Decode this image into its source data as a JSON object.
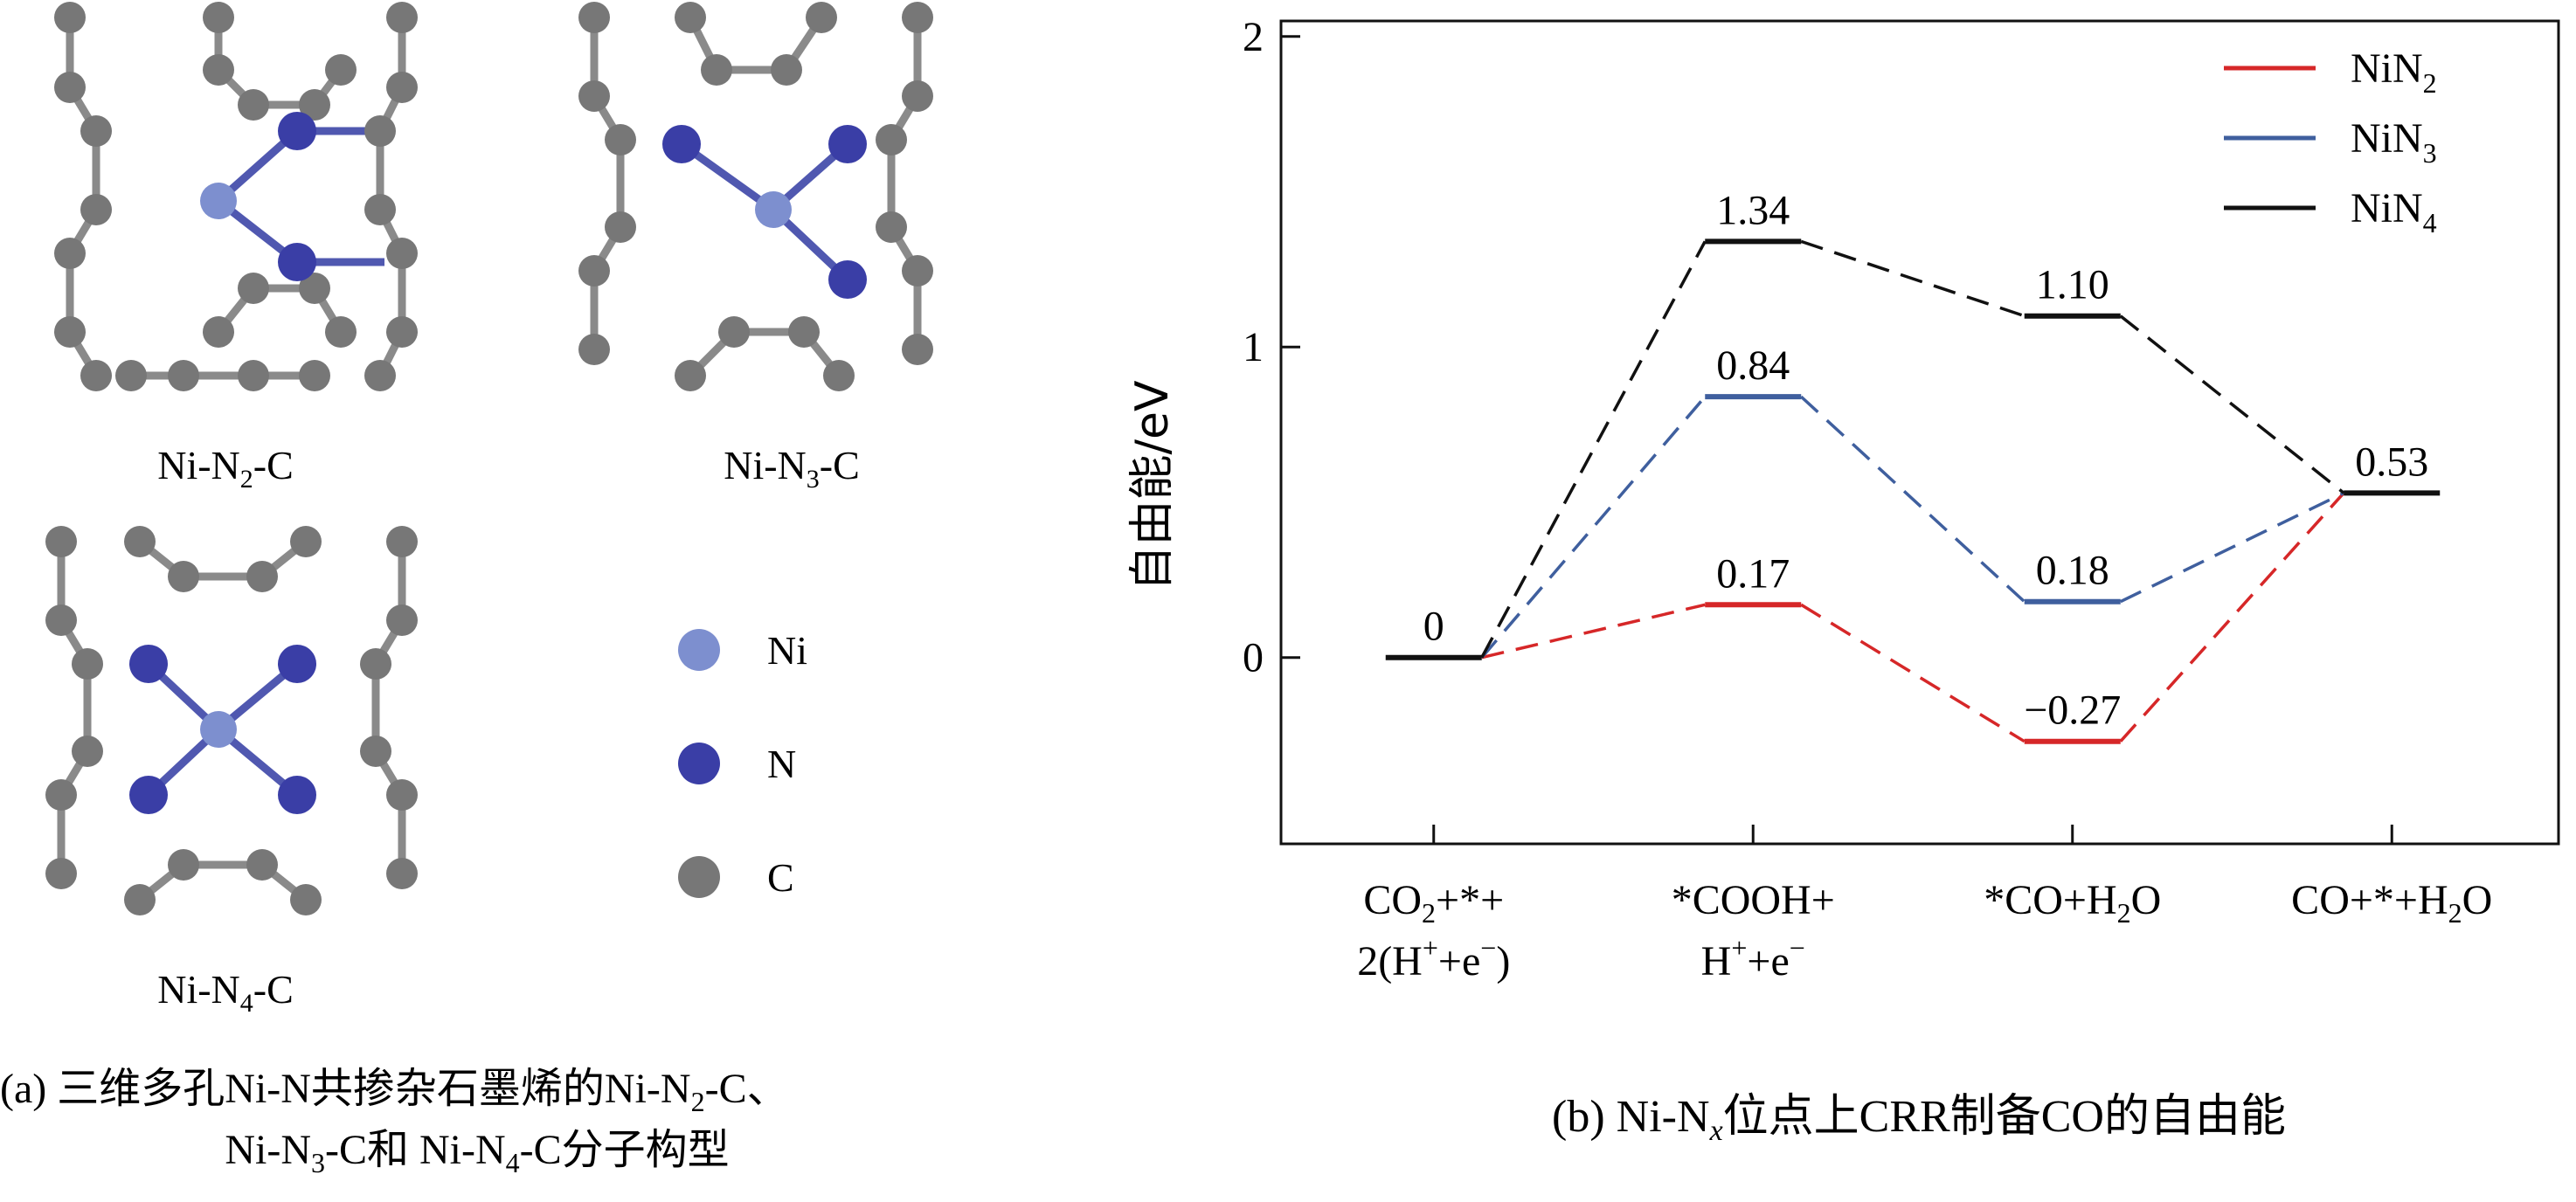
{
  "panel_a": {
    "structures": [
      {
        "id": "n2",
        "label": "Ni-N",
        "sub": "2",
        "suffix": "-C"
      },
      {
        "id": "n3",
        "label": "Ni-N",
        "sub": "3",
        "suffix": "-C"
      },
      {
        "id": "n4",
        "label": "Ni-N",
        "sub": "4",
        "suffix": "-C"
      }
    ],
    "legend": [
      {
        "label": "Ni",
        "color": "#7d8fcf"
      },
      {
        "label": "N",
        "color": "#3a3ea6"
      },
      {
        "label": "C",
        "color": "#777777"
      }
    ],
    "caption_line1": {
      "pre": "(a) 三维多孔Ni-N共掺杂石墨烯的Ni-N",
      "sub": "2",
      "post": "-C、"
    },
    "caption_line2": {
      "pre": "Ni-N",
      "sub1": "3",
      "mid": "-C和 Ni-N",
      "sub2": "4",
      "post": "-C分子构型"
    },
    "colors": {
      "bond": "#8a8a8a",
      "ni": "#7d8fcf",
      "n": "#3a3ea6",
      "c": "#777777"
    }
  },
  "panel_b_caption": {
    "pre": "(b) Ni-N",
    "sub": "x",
    "post": "位点上CRR制备CO的自由能"
  },
  "chart_data": {
    "type": "line",
    "ylabel": "自由能/eV",
    "ylim": [
      -0.6,
      2.05
    ],
    "yticks": [
      0,
      1,
      2
    ],
    "categories": [
      "CO2+*+2(H++e-)",
      "*COOH+H++e-",
      "*CO+H2O",
      "CO+*+H2O"
    ],
    "category_labels": [
      {
        "lines": [
          [
            [
              "CO",
              "n"
            ],
            [
              "2",
              "sub"
            ],
            [
              "+*+",
              "n"
            ]
          ],
          [
            [
              "2(H",
              "n"
            ],
            [
              "+",
              "sup"
            ],
            [
              "+e",
              "n"
            ],
            [
              "−",
              "sup"
            ],
            [
              ")",
              "n"
            ]
          ]
        ]
      },
      {
        "lines": [
          [
            [
              "*COOH+",
              "n"
            ]
          ],
          [
            [
              "H",
              "n"
            ],
            [
              "+",
              "sup"
            ],
            [
              "+e",
              "n"
            ],
            [
              "−",
              "sup"
            ]
          ]
        ]
      },
      {
        "lines": [
          [
            [
              "*CO+H",
              "n"
            ],
            [
              "2",
              "sub"
            ],
            [
              "O",
              "n"
            ]
          ]
        ]
      },
      {
        "lines": [
          [
            [
              "CO+*+H",
              "n"
            ],
            [
              "2",
              "sub"
            ],
            [
              "O",
              "n"
            ]
          ]
        ]
      }
    ],
    "series": [
      {
        "name": "NiN",
        "sub": "2",
        "color": "#d62728",
        "values": [
          0,
          0.17,
          -0.27,
          0.53
        ]
      },
      {
        "name": "NiN",
        "sub": "3",
        "color": "#3f5f9e",
        "values": [
          0,
          0.84,
          0.18,
          0.53
        ]
      },
      {
        "name": "NiN",
        "sub": "4",
        "color": "#111111",
        "values": [
          0,
          1.34,
          1.1,
          0.53
        ]
      }
    ],
    "level_labels": [
      {
        "text": "0",
        "step": 0,
        "value": 0
      },
      {
        "text": "0.17",
        "step": 1,
        "value": 0.17
      },
      {
        "text": "0.84",
        "step": 1,
        "value": 0.84
      },
      {
        "text": "1.34",
        "step": 1,
        "value": 1.34
      },
      {
        "text": "−0.27",
        "step": 2,
        "value": -0.27,
        "below": true
      },
      {
        "text": "0.18",
        "step": 2,
        "value": 0.18
      },
      {
        "text": "1.10",
        "step": 2,
        "value": 1.1
      },
      {
        "text": "0.53",
        "step": 3,
        "value": 0.53
      }
    ],
    "legend_position": "top-right",
    "grid": false
  }
}
